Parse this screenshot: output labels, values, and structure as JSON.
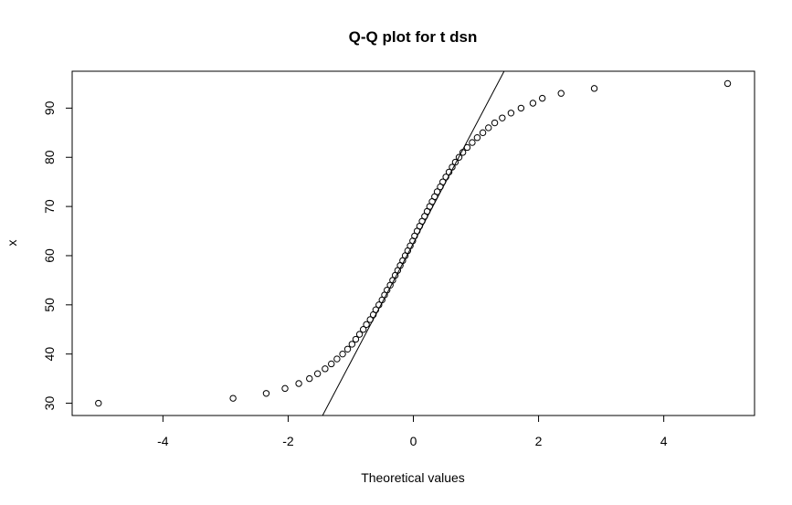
{
  "chart_data": {
    "type": "scatter",
    "title": "Q-Q plot for t dsn",
    "xlabel": "Theoretical values",
    "ylabel": "x",
    "xlim": [
      -5.45,
      5.45
    ],
    "ylim": [
      27.5,
      97.5
    ],
    "x_ticks": [
      -4,
      -2,
      0,
      2,
      4
    ],
    "y_ticks": [
      30,
      40,
      50,
      60,
      70,
      80,
      90
    ],
    "grid": false,
    "legend": "none",
    "point_color": "#000000",
    "reference_line": {
      "points": [
        [
          -1.45,
          27.5
        ],
        [
          1.45,
          97.5
        ]
      ]
    },
    "points": [
      {
        "x": -5.03,
        "y": 30
      },
      {
        "x": -2.88,
        "y": 31
      },
      {
        "x": -2.35,
        "y": 32
      },
      {
        "x": -2.05,
        "y": 33
      },
      {
        "x": -1.83,
        "y": 34
      },
      {
        "x": -1.66,
        "y": 35
      },
      {
        "x": -1.53,
        "y": 36
      },
      {
        "x": -1.41,
        "y": 37
      },
      {
        "x": -1.31,
        "y": 38
      },
      {
        "x": -1.22,
        "y": 39
      },
      {
        "x": -1.13,
        "y": 40
      },
      {
        "x": -1.05,
        "y": 41
      },
      {
        "x": -0.98,
        "y": 42
      },
      {
        "x": -0.92,
        "y": 43
      },
      {
        "x": -0.86,
        "y": 44
      },
      {
        "x": -0.8,
        "y": 45
      },
      {
        "x": -0.75,
        "y": 46
      },
      {
        "x": -0.69,
        "y": 47
      },
      {
        "x": -0.64,
        "y": 48
      },
      {
        "x": -0.6,
        "y": 49
      },
      {
        "x": -0.55,
        "y": 50
      },
      {
        "x": -0.5,
        "y": 51
      },
      {
        "x": -0.46,
        "y": 52
      },
      {
        "x": -0.42,
        "y": 53
      },
      {
        "x": -0.37,
        "y": 54
      },
      {
        "x": -0.33,
        "y": 55
      },
      {
        "x": -0.29,
        "y": 56
      },
      {
        "x": -0.25,
        "y": 57
      },
      {
        "x": -0.21,
        "y": 58
      },
      {
        "x": -0.17,
        "y": 59
      },
      {
        "x": -0.13,
        "y": 60
      },
      {
        "x": -0.09,
        "y": 61
      },
      {
        "x": -0.05,
        "y": 62
      },
      {
        "x": -0.01,
        "y": 63
      },
      {
        "x": 0.02,
        "y": 64
      },
      {
        "x": 0.06,
        "y": 65
      },
      {
        "x": 0.1,
        "y": 66
      },
      {
        "x": 0.14,
        "y": 67
      },
      {
        "x": 0.18,
        "y": 68
      },
      {
        "x": 0.22,
        "y": 69
      },
      {
        "x": 0.26,
        "y": 70
      },
      {
        "x": 0.3,
        "y": 71
      },
      {
        "x": 0.34,
        "y": 72
      },
      {
        "x": 0.38,
        "y": 73
      },
      {
        "x": 0.43,
        "y": 74
      },
      {
        "x": 0.47,
        "y": 75
      },
      {
        "x": 0.52,
        "y": 76
      },
      {
        "x": 0.57,
        "y": 77
      },
      {
        "x": 0.62,
        "y": 78
      },
      {
        "x": 0.67,
        "y": 79
      },
      {
        "x": 0.73,
        "y": 80
      },
      {
        "x": 0.79,
        "y": 81
      },
      {
        "x": 0.86,
        "y": 82
      },
      {
        "x": 0.94,
        "y": 83
      },
      {
        "x": 1.02,
        "y": 84
      },
      {
        "x": 1.11,
        "y": 85
      },
      {
        "x": 1.2,
        "y": 86
      },
      {
        "x": 1.3,
        "y": 87
      },
      {
        "x": 1.42,
        "y": 88
      },
      {
        "x": 1.56,
        "y": 89
      },
      {
        "x": 1.72,
        "y": 90
      },
      {
        "x": 1.91,
        "y": 91
      },
      {
        "x": 2.06,
        "y": 92
      },
      {
        "x": 2.36,
        "y": 93
      },
      {
        "x": 2.89,
        "y": 94
      },
      {
        "x": 5.02,
        "y": 95
      }
    ]
  }
}
